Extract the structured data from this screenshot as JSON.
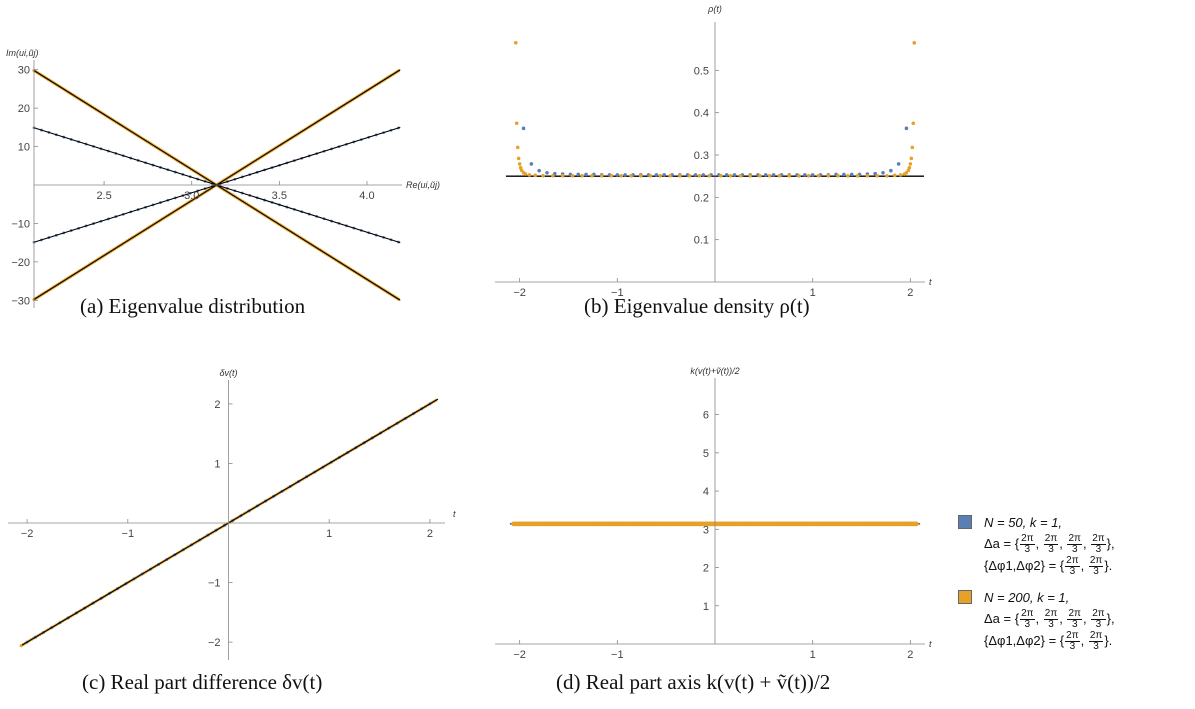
{
  "colors": {
    "series1": "#5a7fb5",
    "series2": "#e5a128",
    "reference": "#000000"
  },
  "captions": {
    "a": "(a) Eigenvalue distribution",
    "b": "(b) Eigenvalue density ρ(t)",
    "c": "(c) Real part difference δv(t)",
    "d": "(d) Real part axis k(v(t) + ṽ(t))/2"
  },
  "legend": [
    {
      "line1": "N = 50, k = 1,",
      "line2_prefix": "Δa = {",
      "line2_fracs": [
        "2π/3",
        "2π/3",
        "2π/3",
        "2π/3"
      ],
      "line2_suffix": "},",
      "line3_prefix": "{Δφ1,Δφ2} = {",
      "line3_fracs": [
        "2π/3",
        "2π/3"
      ],
      "line3_suffix": "}.",
      "color_key": "series1"
    },
    {
      "line1": "N = 200, k = 1,",
      "line2_prefix": "Δa = {",
      "line2_fracs": [
        "2π/3",
        "2π/3",
        "2π/3",
        "2π/3"
      ],
      "line2_suffix": "},",
      "line3_prefix": "{Δφ1,Δφ2} = {",
      "line3_fracs": [
        "2π/3",
        "2π/3"
      ],
      "line3_suffix": "}.",
      "color_key": "series2"
    }
  ],
  "chart_data": [
    {
      "id": "a",
      "type": "scatter",
      "title": "",
      "xlabel": "Re(ui,ũj)",
      "ylabel": "Im(ui,ũj)",
      "xlim": [
        2.1,
        4.2
      ],
      "ylim": [
        -32,
        32
      ],
      "origin": [
        2.1,
        0
      ],
      "xticks": [
        2.5,
        3.0,
        3.5,
        4.0
      ],
      "xtick_labels": [
        "2.5",
        "3.0",
        "3.5",
        "4.0"
      ],
      "yticks": [
        -30,
        -20,
        -10,
        10,
        20,
        30
      ],
      "ytick_labels": [
        "−30",
        "−20",
        "−10",
        "10",
        "20",
        "30"
      ],
      "series": [
        {
          "name": "N = 50, k = 1",
          "color_key": "series1",
          "center": 3.1416,
          "slopes": [
            14.3,
            -14.3
          ],
          "x_range": [
            2.1,
            4.18
          ],
          "points_per_branch": 50
        },
        {
          "name": "N = 200, k = 1",
          "color_key": "series2",
          "center": 3.1416,
          "slopes": [
            28.6,
            -28.6
          ],
          "x_range": [
            2.1,
            4.18
          ],
          "points_per_branch": 200
        }
      ],
      "reference_lines": [
        {
          "center": 3.1416,
          "slope": 14.3
        },
        {
          "center": 3.1416,
          "slope": -14.3
        },
        {
          "center": 3.1416,
          "slope": 28.6
        },
        {
          "center": 3.1416,
          "slope": -28.6
        }
      ]
    },
    {
      "id": "b",
      "type": "scatter",
      "title": "",
      "xlabel": "t",
      "ylabel": "ρ(t)",
      "xlim": [
        -2.15,
        2.15
      ],
      "ylim": [
        0,
        0.6
      ],
      "xticks": [
        -2,
        -1,
        1,
        2
      ],
      "xtick_labels": [
        "−2",
        "−1",
        "1",
        "2"
      ],
      "yticks": [
        0.1,
        0.2,
        0.3,
        0.4,
        0.5
      ],
      "ytick_labels": [
        "0.1",
        "0.2",
        "0.3",
        "0.4",
        "0.5"
      ],
      "reference_y": 0.25,
      "series": [
        {
          "name": "N = 50, k = 1",
          "color_key": "series1",
          "x": [
            -1.96,
            -1.88,
            -1.8,
            -1.72,
            -1.64,
            -1.56,
            -1.48,
            -1.4,
            -1.32,
            -1.24,
            -1.16,
            -1.08,
            -1.0,
            -0.92,
            -0.84,
            -0.76,
            -0.68,
            -0.6,
            -0.52,
            -0.44,
            -0.36,
            -0.28,
            -0.2,
            -0.12,
            -0.04,
            0.04,
            0.12,
            0.2,
            0.28,
            0.36,
            0.44,
            0.52,
            0.6,
            0.68,
            0.76,
            0.84,
            0.92,
            1.0,
            1.08,
            1.16,
            1.24,
            1.32,
            1.4,
            1.48,
            1.56,
            1.64,
            1.72,
            1.8,
            1.88,
            1.96
          ],
          "y": [
            0.363,
            0.279,
            0.263,
            0.258,
            0.256,
            0.255,
            0.254,
            0.254,
            0.254,
            0.254,
            0.253,
            0.253,
            0.253,
            0.253,
            0.253,
            0.253,
            0.253,
            0.253,
            0.253,
            0.253,
            0.253,
            0.253,
            0.253,
            0.253,
            0.253,
            0.253,
            0.253,
            0.253,
            0.253,
            0.253,
            0.253,
            0.253,
            0.253,
            0.253,
            0.253,
            0.253,
            0.253,
            0.253,
            0.253,
            0.253,
            0.254,
            0.254,
            0.254,
            0.254,
            0.255,
            0.256,
            0.258,
            0.263,
            0.279,
            0.363
          ]
        },
        {
          "name": "N = 200, k = 1",
          "color_key": "series2",
          "x": [
            -2.04,
            -2.03,
            -2.02,
            -2.01,
            -2.0,
            -1.99,
            -1.98,
            -1.96,
            -1.94,
            -1.9,
            -1.84,
            -1.76,
            -1.66,
            -1.56,
            -1.46,
            -1.36,
            -1.26,
            -1.16,
            -1.06,
            -0.96,
            -0.86,
            -0.76,
            -0.66,
            -0.56,
            -0.46,
            -0.36,
            -0.26,
            -0.16,
            -0.06,
            0.06,
            0.16,
            0.26,
            0.36,
            0.46,
            0.56,
            0.66,
            0.76,
            0.86,
            0.96,
            1.06,
            1.16,
            1.26,
            1.36,
            1.46,
            1.56,
            1.66,
            1.76,
            1.84,
            1.9,
            1.94,
            1.96,
            1.98,
            1.99,
            2.0,
            2.01,
            2.02,
            2.03,
            2.04
          ],
          "y": [
            0.565,
            0.375,
            0.318,
            0.292,
            0.279,
            0.27,
            0.264,
            0.258,
            0.255,
            0.253,
            0.252,
            0.251,
            0.251,
            0.251,
            0.251,
            0.251,
            0.251,
            0.251,
            0.251,
            0.251,
            0.251,
            0.251,
            0.251,
            0.251,
            0.251,
            0.251,
            0.251,
            0.251,
            0.251,
            0.251,
            0.251,
            0.251,
            0.251,
            0.251,
            0.251,
            0.251,
            0.251,
            0.251,
            0.251,
            0.251,
            0.251,
            0.251,
            0.251,
            0.251,
            0.251,
            0.251,
            0.251,
            0.252,
            0.253,
            0.255,
            0.258,
            0.264,
            0.27,
            0.279,
            0.292,
            0.318,
            0.375,
            0.565
          ]
        }
      ]
    },
    {
      "id": "c",
      "type": "line",
      "title": "",
      "xlabel": "t",
      "ylabel": "δv(t)",
      "xlim": [
        -2.15,
        2.15
      ],
      "ylim": [
        -2.3,
        2.3
      ],
      "xticks": [
        -2,
        -1,
        1,
        2
      ],
      "xtick_labels": [
        "−2",
        "−1",
        "1",
        "2"
      ],
      "yticks": [
        -2,
        -1,
        1,
        2
      ],
      "ytick_labels": [
        "−2",
        "−1",
        "1",
        "2"
      ],
      "reference_line": {
        "slope": 1,
        "intercept": 0,
        "x_range": [
          -2.05,
          2.08
        ]
      },
      "series": [
        {
          "name": "N = 50, k = 1",
          "color_key": "series1",
          "slope": 1,
          "x_range": [
            -2.0,
            2.0
          ],
          "points": 50
        },
        {
          "name": "N = 200, k = 1",
          "color_key": "series2",
          "slope": 1,
          "x_range": [
            -2.06,
            2.06
          ],
          "points": 200
        }
      ]
    },
    {
      "id": "d",
      "type": "scatter",
      "title": "",
      "xlabel": "t",
      "ylabel": "k(v(t)+ṽ(t))/2",
      "xlim": [
        -2.15,
        2.15
      ],
      "ylim": [
        0,
        6.8
      ],
      "xticks": [
        -2,
        -1,
        1,
        2
      ],
      "xtick_labels": [
        "−2",
        "−1",
        "1",
        "2"
      ],
      "yticks": [
        1,
        2,
        3,
        4,
        5,
        6
      ],
      "ytick_labels": [
        "1",
        "2",
        "3",
        "4",
        "5",
        "6"
      ],
      "reference_y": 3.1416,
      "series": [
        {
          "name": "N = 50, k = 1",
          "color_key": "series1",
          "constant": 3.1416,
          "x_range": [
            -2.0,
            2.0
          ],
          "points": 50
        },
        {
          "name": "N = 200, k = 1",
          "color_key": "series2",
          "constant": 3.1416,
          "x_range": [
            -2.06,
            2.06
          ],
          "points": 200
        }
      ]
    }
  ]
}
